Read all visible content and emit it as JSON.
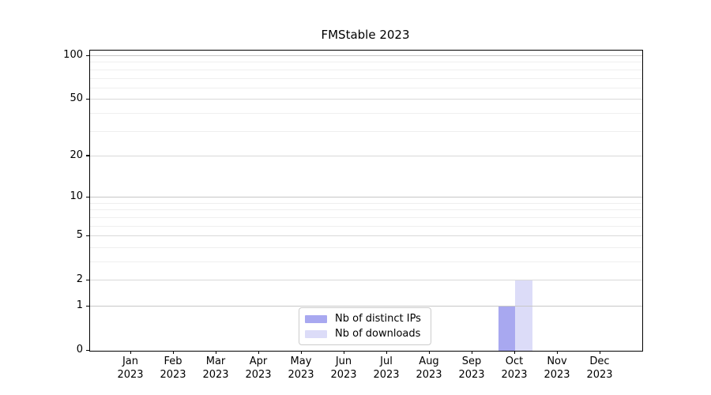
{
  "chart_data": {
    "type": "bar",
    "title": "FMStable 2023",
    "x_axis": {
      "months": [
        "Jan",
        "Feb",
        "Mar",
        "Apr",
        "May",
        "Jun",
        "Jul",
        "Aug",
        "Sep",
        "Oct",
        "Nov",
        "Dec"
      ],
      "year": "2023"
    },
    "y_axis": {
      "scale": "log1p",
      "ticks": [
        0,
        1,
        2,
        5,
        10,
        20,
        50,
        100
      ],
      "minor_gridlines": [
        3,
        4,
        6,
        7,
        8,
        9,
        30,
        40,
        60,
        70,
        80,
        90
      ],
      "range_max": 110
    },
    "series": [
      {
        "name": "Nb of distinct IPs",
        "color": "#a8a8f0",
        "values": [
          0,
          0,
          0,
          0,
          0,
          0,
          0,
          0,
          0,
          1,
          0,
          0
        ]
      },
      {
        "name": "Nb of downloads",
        "color": "#dcdcf8",
        "values": [
          0,
          0,
          0,
          0,
          0,
          0,
          0,
          0,
          0,
          2,
          0,
          0
        ]
      }
    ],
    "legend": {
      "position": "bottom-center"
    },
    "grid": true,
    "colors": {
      "axis": "#000000",
      "gridline_decade": "#c7c7c7",
      "gridline_major": "#d9d9d9",
      "gridline_minor": "#efefef",
      "background": "#ffffff"
    }
  }
}
